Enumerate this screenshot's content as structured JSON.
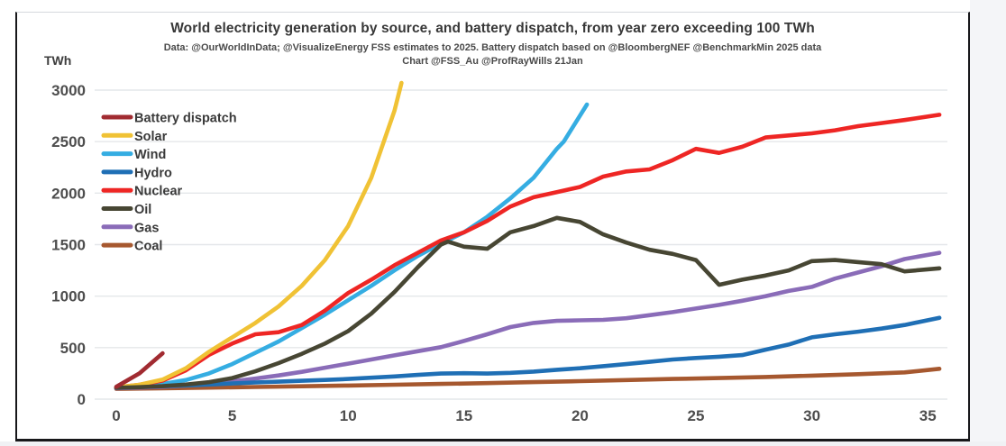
{
  "header": {
    "title": "World electricity generation by source, and battery dispatch, from year zero exceeding 100 TWh",
    "subtitle1": "Data: @OurWorldInData; @VisualizeEnergy FSS estimates to 2025. Battery dispatch based on @BloombergNEF @BenchmarkMin 2025 data",
    "subtitle2": "Chart @FSS_Au @ProfRayWills  21Jan"
  },
  "chart_data": {
    "type": "line",
    "title": "World electricity generation by source, and battery dispatch, from year zero exceeding 100 TWh",
    "xlabel": "",
    "ylabel": "TWh",
    "xlim": [
      0,
      35.8
    ],
    "ylim": [
      0,
      3100
    ],
    "x_ticks": [
      0,
      5,
      10,
      15,
      20,
      25,
      30,
      35
    ],
    "y_ticks": [
      0,
      500,
      1000,
      1500,
      2000,
      2500,
      3000
    ],
    "grid": "horizontal",
    "grid_color": "#e4e7ea",
    "tick_color": "#4d4d4d",
    "legend_position": "top-left",
    "x_units": "years since exceeding 100 TWh",
    "series": [
      {
        "name": "Battery dispatch",
        "color": "#A12B31",
        "points": [
          [
            0,
            120
          ],
          [
            1,
            250
          ],
          [
            2,
            445
          ]
        ]
      },
      {
        "name": "Solar",
        "color": "#F0C235",
        "points": [
          [
            0,
            115
          ],
          [
            1,
            140
          ],
          [
            2,
            190
          ],
          [
            3,
            300
          ],
          [
            4,
            460
          ],
          [
            5,
            600
          ],
          [
            6,
            740
          ],
          [
            7,
            900
          ],
          [
            8,
            1100
          ],
          [
            9,
            1350
          ],
          [
            10,
            1680
          ],
          [
            11,
            2150
          ],
          [
            12,
            2800
          ],
          [
            12.3,
            3070
          ]
        ]
      },
      {
        "name": "Wind",
        "color": "#35ADE2",
        "points": [
          [
            0,
            112
          ],
          [
            1,
            125
          ],
          [
            2,
            148
          ],
          [
            3,
            185
          ],
          [
            4,
            250
          ],
          [
            5,
            340
          ],
          [
            6,
            450
          ],
          [
            7,
            560
          ],
          [
            8,
            690
          ],
          [
            9,
            820
          ],
          [
            10,
            960
          ],
          [
            11,
            1100
          ],
          [
            12,
            1250
          ],
          [
            13,
            1390
          ],
          [
            14,
            1510
          ],
          [
            15,
            1620
          ],
          [
            16,
            1770
          ],
          [
            17,
            1950
          ],
          [
            18,
            2150
          ],
          [
            19,
            2430
          ],
          [
            19.3,
            2500
          ],
          [
            20.3,
            2860
          ]
        ]
      },
      {
        "name": "Hydro",
        "color": "#1F6FB5",
        "points": [
          [
            0,
            112
          ],
          [
            1,
            118
          ],
          [
            2,
            125
          ],
          [
            3,
            133
          ],
          [
            4,
            142
          ],
          [
            5,
            152
          ],
          [
            6,
            162
          ],
          [
            7,
            170
          ],
          [
            8,
            178
          ],
          [
            9,
            186
          ],
          [
            10,
            196
          ],
          [
            11,
            208
          ],
          [
            12,
            220
          ],
          [
            13,
            235
          ],
          [
            14,
            248
          ],
          [
            15,
            252
          ],
          [
            16,
            248
          ],
          [
            17,
            255
          ],
          [
            18,
            268
          ],
          [
            19,
            285
          ],
          [
            20,
            300
          ],
          [
            21,
            320
          ],
          [
            22,
            340
          ],
          [
            23,
            362
          ],
          [
            24,
            385
          ],
          [
            25,
            400
          ],
          [
            26,
            412
          ],
          [
            27,
            428
          ],
          [
            28,
            480
          ],
          [
            29,
            530
          ],
          [
            30,
            600
          ],
          [
            31,
            630
          ],
          [
            32,
            655
          ],
          [
            33,
            685
          ],
          [
            34,
            720
          ],
          [
            35.5,
            790
          ]
        ]
      },
      {
        "name": "Nuclear",
        "color": "#EE2624",
        "points": [
          [
            0,
            115
          ],
          [
            1,
            140
          ],
          [
            2,
            180
          ],
          [
            3,
            280
          ],
          [
            4,
            430
          ],
          [
            5,
            540
          ],
          [
            6,
            630
          ],
          [
            7,
            650
          ],
          [
            8,
            720
          ],
          [
            9,
            860
          ],
          [
            10,
            1030
          ],
          [
            11,
            1160
          ],
          [
            12,
            1300
          ],
          [
            13,
            1420
          ],
          [
            14,
            1540
          ],
          [
            15,
            1620
          ],
          [
            16,
            1730
          ],
          [
            17,
            1870
          ],
          [
            18,
            1960
          ],
          [
            19,
            2010
          ],
          [
            20,
            2060
          ],
          [
            21,
            2160
          ],
          [
            22,
            2210
          ],
          [
            23,
            2230
          ],
          [
            24,
            2320
          ],
          [
            25,
            2430
          ],
          [
            26,
            2390
          ],
          [
            27,
            2450
          ],
          [
            28,
            2540
          ],
          [
            29,
            2560
          ],
          [
            30,
            2580
          ],
          [
            31,
            2610
          ],
          [
            32,
            2650
          ],
          [
            33,
            2680
          ],
          [
            34,
            2710
          ],
          [
            35.5,
            2760
          ]
        ]
      },
      {
        "name": "Oil",
        "color": "#474633",
        "points": [
          [
            0,
            110
          ],
          [
            1,
            116
          ],
          [
            2,
            126
          ],
          [
            3,
            142
          ],
          [
            4,
            165
          ],
          [
            5,
            205
          ],
          [
            6,
            270
          ],
          [
            7,
            350
          ],
          [
            8,
            440
          ],
          [
            9,
            540
          ],
          [
            10,
            660
          ],
          [
            11,
            830
          ],
          [
            12,
            1040
          ],
          [
            13,
            1280
          ],
          [
            14,
            1500
          ],
          [
            14.3,
            1530
          ],
          [
            15,
            1480
          ],
          [
            16,
            1460
          ],
          [
            17,
            1620
          ],
          [
            18,
            1680
          ],
          [
            19,
            1760
          ],
          [
            20,
            1720
          ],
          [
            21,
            1600
          ],
          [
            22,
            1520
          ],
          [
            23,
            1450
          ],
          [
            24,
            1410
          ],
          [
            25,
            1350
          ],
          [
            26,
            1110
          ],
          [
            27,
            1160
          ],
          [
            28,
            1200
          ],
          [
            29,
            1250
          ],
          [
            30,
            1340
          ],
          [
            31,
            1350
          ],
          [
            32,
            1330
          ],
          [
            33,
            1310
          ],
          [
            34,
            1240
          ],
          [
            35.5,
            1270
          ]
        ]
      },
      {
        "name": "Gas",
        "color": "#8A6CB8",
        "points": [
          [
            0,
            105
          ],
          [
            1,
            112
          ],
          [
            2,
            120
          ],
          [
            3,
            133
          ],
          [
            4,
            150
          ],
          [
            5,
            172
          ],
          [
            6,
            200
          ],
          [
            7,
            230
          ],
          [
            8,
            265
          ],
          [
            9,
            305
          ],
          [
            10,
            345
          ],
          [
            11,
            385
          ],
          [
            12,
            425
          ],
          [
            13,
            465
          ],
          [
            14,
            505
          ],
          [
            15,
            565
          ],
          [
            16,
            630
          ],
          [
            17,
            700
          ],
          [
            18,
            740
          ],
          [
            19,
            760
          ],
          [
            20,
            765
          ],
          [
            21,
            770
          ],
          [
            22,
            785
          ],
          [
            23,
            815
          ],
          [
            24,
            845
          ],
          [
            25,
            880
          ],
          [
            26,
            915
          ],
          [
            27,
            955
          ],
          [
            28,
            1000
          ],
          [
            29,
            1050
          ],
          [
            30,
            1090
          ],
          [
            31,
            1170
          ],
          [
            32,
            1230
          ],
          [
            33,
            1290
          ],
          [
            34,
            1360
          ],
          [
            35.5,
            1420
          ]
        ]
      },
      {
        "name": "Coal",
        "color": "#A6582F",
        "points": [
          [
            0,
            100
          ],
          [
            2,
            106
          ],
          [
            4,
            112
          ],
          [
            6,
            118
          ],
          [
            8,
            125
          ],
          [
            10,
            132
          ],
          [
            12,
            140
          ],
          [
            14,
            148
          ],
          [
            16,
            156
          ],
          [
            18,
            165
          ],
          [
            20,
            175
          ],
          [
            22,
            185
          ],
          [
            24,
            196
          ],
          [
            26,
            205
          ],
          [
            28,
            215
          ],
          [
            30,
            228
          ],
          [
            32,
            242
          ],
          [
            34,
            260
          ],
          [
            35.5,
            295
          ]
        ]
      }
    ]
  }
}
